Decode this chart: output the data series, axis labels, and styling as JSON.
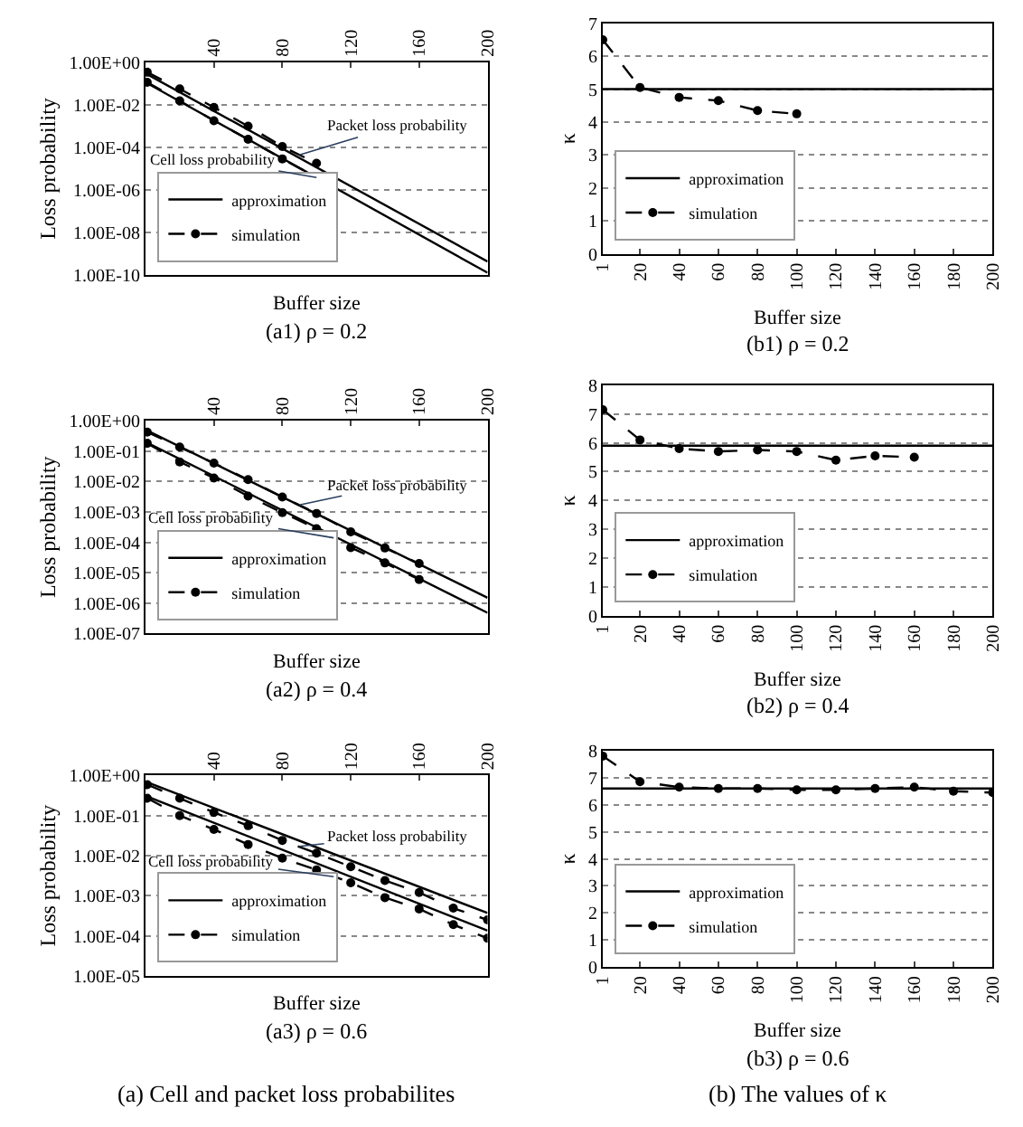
{
  "chart_data": [
    {
      "type": "line",
      "title": "(a1) ρ = 0.2",
      "xlabel": "Buffer size",
      "ylabel": "Loss probability",
      "log": "y",
      "grid": "y",
      "legend": "bottom left",
      "xlim": [
        0,
        200
      ],
      "xticks": [
        40,
        80,
        120,
        160,
        200
      ],
      "ylim": [
        1e-10,
        1
      ],
      "yticks": [
        {
          "value": 1,
          "label": "1.00E+00"
        },
        {
          "value": 0.01,
          "label": "1.00E-02"
        },
        {
          "value": 0.0001,
          "label": "1.00E-04"
        },
        {
          "value": 1e-06,
          "label": "1.00E-06"
        },
        {
          "value": 1e-08,
          "label": "1.00E-08"
        },
        {
          "value": 1e-10,
          "label": "1.00E-10"
        }
      ],
      "series": [
        {
          "name": "approximation",
          "color": "#000000",
          "line_style": "solid",
          "marker": "none",
          "x": [
            0,
            200
          ],
          "values": [
            0.3,
            4.4e-10
          ]
        },
        {
          "name": "simulation",
          "color": "#000000",
          "line_style": "dashed",
          "marker": "circle",
          "x": [
            1,
            20,
            40,
            60,
            80,
            100
          ],
          "values": [
            0.34,
            0.056,
            0.0076,
            0.001,
            0.00011,
            1.8e-05
          ]
        },
        {
          "color": "#000000",
          "line_style": "solid",
          "marker": "none",
          "x": [
            0,
            200
          ],
          "values": [
            0.115,
            1.3e-10
          ]
        },
        {
          "color": "#000000",
          "line_style": "dashed",
          "marker": "circle",
          "x": [
            1,
            20,
            40,
            60,
            80,
            100
          ],
          "values": [
            0.115,
            0.0155,
            0.0018,
            0.00024,
            2.9e-05,
            3.9e-06
          ]
        }
      ],
      "annotations": [
        {
          "text": "Packet loss probability",
          "x": 90,
          "y": 4.5e-05
        },
        {
          "text": "Cell loss probability",
          "x": 100,
          "y": 3.9e-06
        }
      ]
    },
    {
      "type": "line",
      "title": "(b1) ρ = 0.2",
      "xlabel": "Buffer size",
      "ylabel": "κ",
      "grid": "y",
      "legend": "bottom left",
      "xlim": [
        1,
        200
      ],
      "xticks": [
        1,
        20,
        40,
        60,
        80,
        100,
        120,
        140,
        160,
        180,
        200
      ],
      "ylim": [
        0,
        7
      ],
      "yticks": [
        0,
        1,
        2,
        3,
        4,
        5,
        6,
        7
      ],
      "series": [
        {
          "name": "approximation",
          "color": "#000000",
          "line_style": "solid",
          "marker": "none",
          "x": [
            1,
            200
          ],
          "values": [
            5.0,
            5.0
          ]
        },
        {
          "name": "simulation",
          "color": "#000000",
          "line_style": "dashed",
          "marker": "circle",
          "x": [
            1,
            20,
            40,
            60,
            80,
            100
          ],
          "values": [
            6.5,
            5.05,
            4.75,
            4.65,
            4.35,
            4.25
          ]
        }
      ]
    },
    {
      "type": "line",
      "title": "(a2) ρ = 0.4",
      "xlabel": "Buffer size",
      "ylabel": "Loss probability",
      "log": "y",
      "grid": "y",
      "legend": "bottom left",
      "xlim": [
        0,
        200
      ],
      "xticks": [
        40,
        80,
        120,
        160,
        200
      ],
      "ylim": [
        1e-07,
        1
      ],
      "yticks": [
        {
          "value": 1,
          "label": "1.00E+00"
        },
        {
          "value": 0.1,
          "label": "1.00E-01"
        },
        {
          "value": 0.01,
          "label": "1.00E-02"
        },
        {
          "value": 0.001,
          "label": "1.00E-03"
        },
        {
          "value": 0.0001,
          "label": "1.00E-04"
        },
        {
          "value": 1e-05,
          "label": "1.00E-05"
        },
        {
          "value": 1e-06,
          "label": "1.00E-06"
        },
        {
          "value": 1e-07,
          "label": "1.00E-07"
        }
      ],
      "series": [
        {
          "name": "approximation",
          "color": "#000000",
          "line_style": "solid",
          "marker": "none",
          "x": [
            0,
            200
          ],
          "values": [
            0.5,
            1.5e-06
          ]
        },
        {
          "name": "simulation",
          "color": "#000000",
          "line_style": "dashed",
          "marker": "circle",
          "x": [
            1,
            20,
            40,
            60,
            80,
            100,
            120,
            140,
            160
          ],
          "values": [
            0.42,
            0.135,
            0.04,
            0.0115,
            0.0031,
            0.00089,
            0.00022,
            6.5e-05,
            2e-05
          ]
        },
        {
          "color": "#000000",
          "line_style": "solid",
          "marker": "none",
          "x": [
            0,
            200
          ],
          "values": [
            0.2,
            4.8e-07
          ]
        },
        {
          "color": "#000000",
          "line_style": "dashed",
          "marker": "circle",
          "x": [
            1,
            20,
            40,
            60,
            80,
            100,
            120,
            140,
            160
          ],
          "values": [
            0.18,
            0.044,
            0.013,
            0.0033,
            0.00095,
            0.00028,
            6.7e-05,
            2.1e-05,
            6e-06
          ]
        }
      ],
      "annotations": [
        {
          "text": "Packet loss probability",
          "x": 90,
          "y": 0.0017
        },
        {
          "text": "Cell loss probability",
          "x": 110,
          "y": 0.00014
        }
      ]
    },
    {
      "type": "line",
      "title": "(b2) ρ = 0.4",
      "xlabel": "Buffer size",
      "ylabel": "κ",
      "grid": "y",
      "legend": "bottom left",
      "xlim": [
        1,
        200
      ],
      "xticks": [
        1,
        20,
        40,
        60,
        80,
        100,
        120,
        140,
        160,
        180,
        200
      ],
      "ylim": [
        0,
        8
      ],
      "yticks": [
        0,
        1,
        2,
        3,
        4,
        5,
        6,
        7,
        8
      ],
      "series": [
        {
          "name": "approximation",
          "color": "#000000",
          "line_style": "solid",
          "marker": "none",
          "x": [
            1,
            200
          ],
          "values": [
            5.9,
            5.9
          ]
        },
        {
          "name": "simulation",
          "color": "#000000",
          "line_style": "dashed",
          "marker": "circle",
          "x": [
            1,
            20,
            40,
            60,
            80,
            100,
            120,
            140,
            160
          ],
          "values": [
            7.15,
            6.1,
            5.8,
            5.7,
            5.75,
            5.7,
            5.4,
            5.55,
            5.5
          ]
        }
      ]
    },
    {
      "type": "line",
      "title": "(a3) ρ = 0.6",
      "xlabel": "Buffer size",
      "ylabel": "Loss probability",
      "log": "y",
      "grid": "y",
      "legend": "bottom left",
      "xlim": [
        0,
        200
      ],
      "xticks": [
        40,
        80,
        120,
        160,
        200
      ],
      "ylim": [
        1e-05,
        1
      ],
      "yticks": [
        {
          "value": 1,
          "label": "1.00E+00"
        },
        {
          "value": 0.1,
          "label": "1.00E-01"
        },
        {
          "value": 0.01,
          "label": "1.00E-02"
        },
        {
          "value": 0.001,
          "label": "1.00E-03"
        },
        {
          "value": 0.0001,
          "label": "1.00E-04"
        },
        {
          "value": 1e-05,
          "label": "1.00E-05"
        }
      ],
      "series": [
        {
          "name": "approximation",
          "color": "#000000",
          "line_style": "solid",
          "marker": "none",
          "x": [
            0,
            200
          ],
          "values": [
            0.7,
            0.00037
          ]
        },
        {
          "name": "simulation",
          "color": "#000000",
          "line_style": "dashed",
          "marker": "circle",
          "x": [
            1,
            20,
            40,
            60,
            80,
            100,
            120,
            140,
            160,
            180,
            200
          ],
          "values": [
            0.59,
            0.27,
            0.12,
            0.056,
            0.024,
            0.0115,
            0.0053,
            0.0024,
            0.0012,
            0.00049,
            0.00025
          ]
        },
        {
          "color": "#000000",
          "line_style": "solid",
          "marker": "none",
          "x": [
            0,
            200
          ],
          "values": [
            0.31,
            0.000135
          ]
        },
        {
          "color": "#000000",
          "line_style": "dashed",
          "marker": "circle",
          "x": [
            1,
            20,
            40,
            60,
            80,
            100,
            120,
            140,
            160,
            180,
            200
          ],
          "values": [
            0.27,
            0.1,
            0.045,
            0.019,
            0.0087,
            0.0044,
            0.0021,
            0.0009,
            0.00047,
            0.00019,
            8.7e-05
          ]
        }
      ],
      "annotations": [
        {
          "text": "Packet loss probability",
          "x": 90,
          "y": 0.017
        },
        {
          "text": "Cell loss probability",
          "x": 110,
          "y": 0.003
        },
        "(a) Cell and packet loss probabilites"
      ]
    },
    {
      "type": "line",
      "title": "(b3) ρ = 0.6",
      "xlabel": "Buffer size",
      "ylabel": "κ",
      "grid": "y",
      "legend": "bottom left",
      "xlim": [
        1,
        200
      ],
      "xticks": [
        1,
        20,
        40,
        60,
        80,
        100,
        120,
        140,
        160,
        180,
        200
      ],
      "ylim": [
        0,
        8
      ],
      "yticks": [
        0,
        1,
        2,
        3,
        4,
        5,
        6,
        7,
        8
      ],
      "series": [
        {
          "name": "approximation",
          "color": "#000000",
          "line_style": "solid",
          "marker": "none",
          "x": [
            1,
            200
          ],
          "values": [
            6.6,
            6.6
          ]
        },
        {
          "name": "simulation",
          "color": "#000000",
          "line_style": "dashed",
          "marker": "circle",
          "x": [
            1,
            20,
            40,
            60,
            80,
            100,
            120,
            140,
            160,
            180,
            200
          ],
          "values": [
            7.8,
            6.85,
            6.65,
            6.6,
            6.6,
            6.55,
            6.55,
            6.6,
            6.65,
            6.5,
            6.45
          ]
        }
      ],
      "annotations": [
        "(b) The values of κ"
      ]
    }
  ]
}
